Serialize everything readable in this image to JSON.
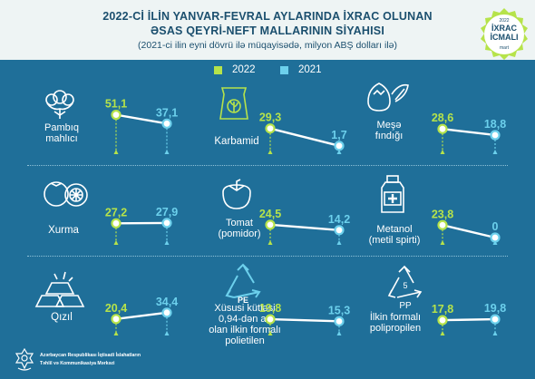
{
  "header": {
    "title_line1": "2022-Cİ İLİN YANVAR-FEVRAL AYLARINDA İXRAC OLUNAN",
    "title_line2": "ƏSAS QEYRİ-NEFT MALLARININ SİYAHISI",
    "subtitle": "(2021-ci ilin eyni dövrü ilə müqayisədə, milyon ABŞ dolları ilə)"
  },
  "badge": {
    "year": "2022",
    "line1": "İXRAC",
    "line2": "İCMALI",
    "month": "mart"
  },
  "colors": {
    "background": "#1f6f99",
    "header": "#eef4f4",
    "series_2022": "#b6e34a",
    "series_2021": "#6cd0ec",
    "connector": "#ffffff"
  },
  "footer": {
    "line1": "Azərbaycan Respublikası İqtisadi İslahatların",
    "line2": "Təhlil və Kommunikasiya Mərkəzi"
  },
  "chart_data": {
    "type": "line",
    "title": "2022-Cİ İLİN YANVAR-FEVRAL AYLARINDA İXRAC OLUNAN ƏSAS QEYRİ-NEFT MALLARININ SİYAHISI",
    "subtitle": "(2021-ci ilin eyni dövrü ilə müqayisədə, milyon ABŞ dolları ilə)",
    "x": [
      "2022",
      "2021"
    ],
    "legend": [
      "2022",
      "2021"
    ],
    "legend_position": "top-center",
    "panels": [
      {
        "name": "Pambıq mahlıcı",
        "label_lines": [
          "Pambıq",
          "mahlıcı"
        ],
        "icon": "cotton-icon",
        "value_2022": 51.1,
        "value_2021": 37.1,
        "label_2022": "51,1",
        "label_2021": "37,1"
      },
      {
        "name": "Karbamid",
        "label_lines": [
          "Karbamid"
        ],
        "icon": "fertilizer-bag-icon",
        "value_2022": 29.3,
        "value_2021": 1.7,
        "label_2022": "29,3",
        "label_2021": "1,7"
      },
      {
        "name": "Meşə fındığı",
        "label_lines": [
          "Meşə",
          "fındığı"
        ],
        "icon": "hazelnut-icon",
        "value_2022": 28.6,
        "value_2021": 18.8,
        "label_2022": "28,6",
        "label_2021": "18,8"
      },
      {
        "name": "Xurma",
        "label_lines": [
          "Xurma"
        ],
        "icon": "persimmon-icon",
        "value_2022": 27.2,
        "value_2021": 27.9,
        "label_2022": "27,2",
        "label_2021": "27,9"
      },
      {
        "name": "Tomat (pomidor)",
        "label_lines": [
          "Tomat",
          "(pomidor)"
        ],
        "icon": "tomato-icon",
        "value_2022": 24.5,
        "value_2021": 14.2,
        "label_2022": "24,5",
        "label_2021": "14,2"
      },
      {
        "name": "Metanol (metil spirti)",
        "label_lines": [
          "Metanol",
          "(metil spirti)"
        ],
        "icon": "bottle-icon",
        "value_2022": 23.8,
        "value_2021": 0,
        "label_2022": "23,8",
        "label_2021": "0"
      },
      {
        "name": "Qızıl",
        "label_lines": [
          "Qızıl"
        ],
        "icon": "gold-bars-icon",
        "value_2022": 20.4,
        "value_2021": 34.4,
        "label_2022": "20,4",
        "label_2021": "34,4"
      },
      {
        "name": "Xüsusi kütləsi 0,94-dən az olan ilkin formalı polietilen",
        "label_lines": [
          "Xüsusi kütləsi",
          "0,94-dən az",
          "olan ilkin formalı",
          "polietilen"
        ],
        "icon": "recycle-pe-icon",
        "icon_text": "PE",
        "value_2022": 19.8,
        "value_2021": 15.3,
        "label_2022": "19,8",
        "label_2021": "15,3"
      },
      {
        "name": "İlkin formalı polipropilen",
        "label_lines": [
          "İlkin formalı",
          "polipropilen"
        ],
        "icon": "recycle-pp-icon",
        "icon_text": "PP",
        "icon_number": "5",
        "value_2022": 17.8,
        "value_2021": 19.8,
        "label_2022": "17,8",
        "label_2021": "19,8"
      }
    ]
  }
}
